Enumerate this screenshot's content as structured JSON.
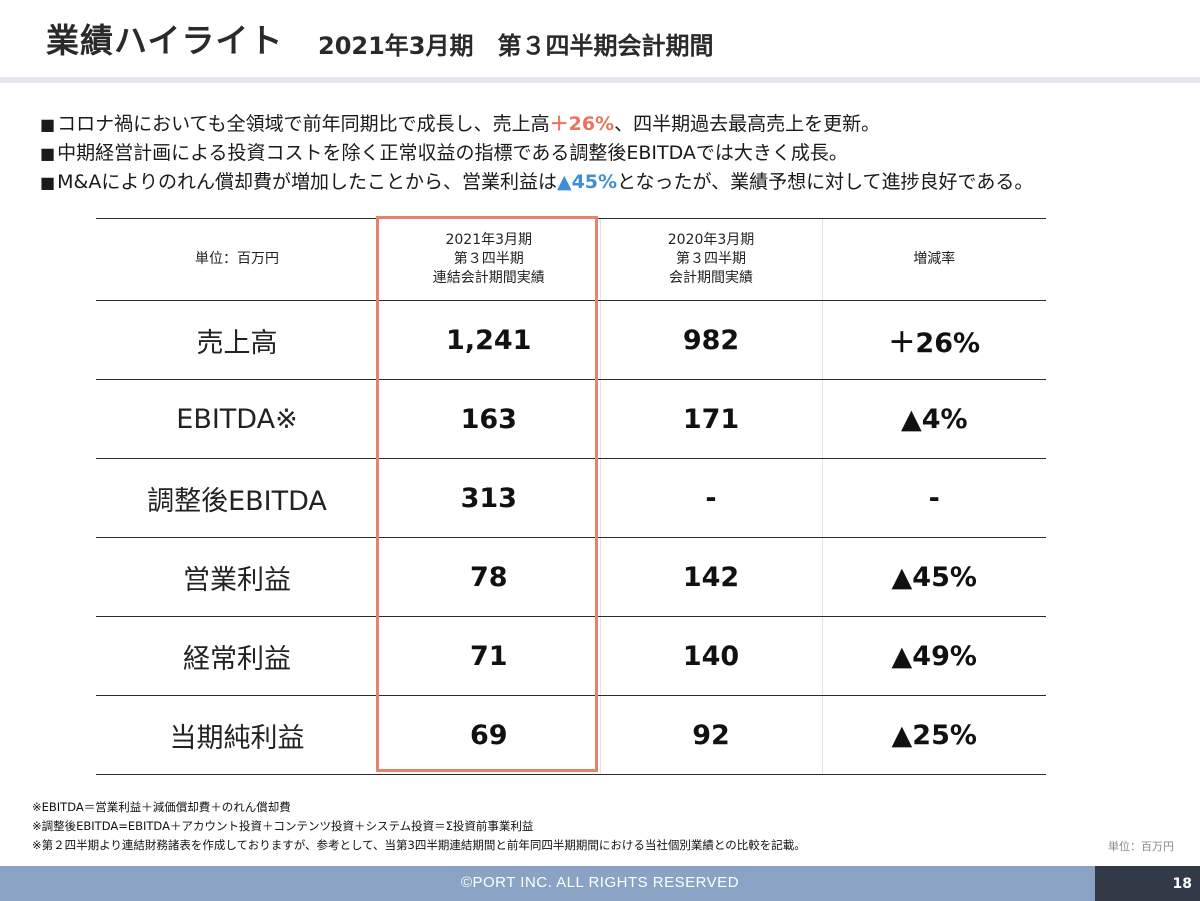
{
  "header": {
    "title": "業績ハイライト",
    "subtitle": "2021年3月期　第３四半期会計期間"
  },
  "bullets": [
    {
      "marker": "■",
      "pre": "コロナ禍においても全領域で前年同期比で成長し、売上高",
      "highlight": "＋26%",
      "post": "、四半期過去最高売上を更新。"
    },
    {
      "marker": "■",
      "text": "中期経営計画による投資コストを除く正常収益の指標である調整後EBITDAでは大きく成長。"
    },
    {
      "marker": "■",
      "pre": "M&Aによりのれん償却費が増加したことから、営業利益は",
      "highlight": "▲45%",
      "post": "となったが、業績予想に対して進捗良好である。"
    }
  ],
  "table": {
    "headers": [
      {
        "lines": [
          "単位：百万円"
        ]
      },
      {
        "lines": [
          "2021年3月期",
          "第３四半期",
          "連結会計期間実績"
        ]
      },
      {
        "lines": [
          "2020年3月期",
          "第３四半期",
          "会計期間実績"
        ]
      },
      {
        "lines": [
          "増減率"
        ]
      }
    ],
    "rows": [
      {
        "label": "売上高",
        "current": "1,241",
        "prior": "982",
        "change": "＋26%"
      },
      {
        "label": "EBITDA※",
        "current": "163",
        "prior": "171",
        "change": "▲4%"
      },
      {
        "label": "調整後EBITDA",
        "current": "313",
        "prior": "-",
        "change": "-"
      },
      {
        "label": "営業利益",
        "current": "78",
        "prior": "142",
        "change": "▲45%"
      },
      {
        "label": "経常利益",
        "current": "71",
        "prior": "140",
        "change": "▲49%"
      },
      {
        "label": "当期純利益",
        "current": "69",
        "prior": "92",
        "change": "▲25%"
      }
    ]
  },
  "notes": [
    "※EBITDA＝営業利益＋減価償却費＋のれん償却費",
    "※調整後EBITDA=EBITDA＋アカウント投資＋コンテンツ投資＋システム投資＝Σ投資前事業利益",
    "※第２四半期より連結財務諸表を作成しておりますが、参考として、当第3四半期連結期間と前年同四半期期間における当社個別業績との比較を記載。"
  ],
  "unit_note": "単位：百万円",
  "footer": {
    "copyright": "©PORT INC. ALL RIGHTS RESERVED",
    "page_number": "18"
  },
  "colors": {
    "highlight_red": "#e8745b",
    "highlight_blue": "#3d8fd6",
    "box_border": "#e8836b",
    "footer_bg": "#8aa3c4",
    "page_box_bg": "#333a47"
  }
}
